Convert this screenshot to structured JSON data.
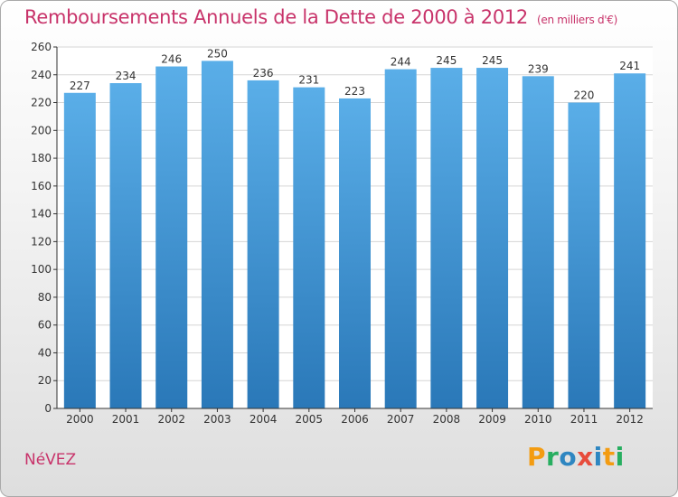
{
  "header": {
    "title": "Remboursements Annuels de la Dette de 2000 à 2012",
    "subtitle": "(en milliers d'€)"
  },
  "footer": {
    "commune": "NéVEZ",
    "logo_letters": [
      {
        "char": "P",
        "color": "#f39c12"
      },
      {
        "char": "r",
        "color": "#27ae60"
      },
      {
        "char": "o",
        "color": "#2e86c1"
      },
      {
        "char": "x",
        "color": "#e74c3c"
      },
      {
        "char": "i",
        "color": "#2e86c1"
      },
      {
        "char": "t",
        "color": "#f39c12"
      },
      {
        "char": "i",
        "color": "#27ae60"
      }
    ]
  },
  "chart_data": {
    "type": "bar",
    "title": "Remboursements Annuels de la Dette de 2000 à 2012",
    "subtitle": "(en milliers d'€)",
    "categories": [
      "2000",
      "2001",
      "2002",
      "2003",
      "2004",
      "2005",
      "2006",
      "2007",
      "2008",
      "2009",
      "2010",
      "2011",
      "2012"
    ],
    "values": [
      227,
      234,
      246,
      250,
      236,
      231,
      223,
      244,
      245,
      245,
      239,
      220,
      241
    ],
    "ylim": [
      0,
      260
    ],
    "yticks": [
      0,
      20,
      40,
      60,
      80,
      100,
      120,
      140,
      160,
      180,
      200,
      220,
      240,
      260
    ],
    "grid": true,
    "colors": {
      "bar_top": "#5aaee8",
      "bar_bottom": "#2a78b8",
      "grid": "#d5d5d5",
      "axis": "#333333"
    }
  }
}
